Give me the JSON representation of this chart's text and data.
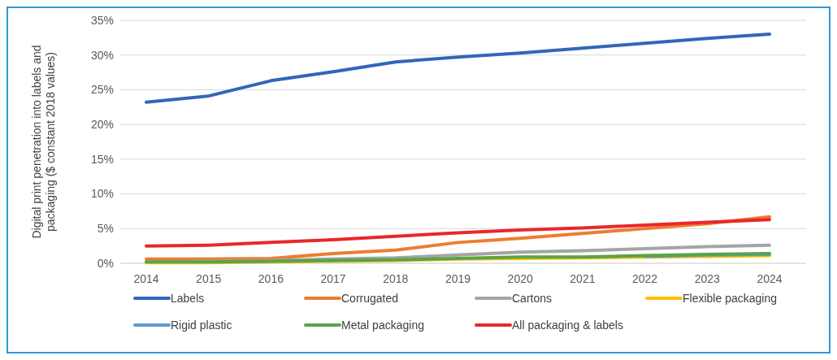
{
  "chart_data": {
    "type": "line",
    "ylabel": "Digital print penetration into labels and packaging ($ constant 2018 values)",
    "categories": [
      "2014",
      "2015",
      "2016",
      "2017",
      "2018",
      "2019",
      "2020",
      "2021",
      "2022",
      "2023",
      "2024"
    ],
    "series": [
      {
        "name": "Labels",
        "color": "#3266b8",
        "values": [
          23.2,
          24.1,
          26.3,
          27.6,
          29.0,
          29.7,
          30.3,
          31.0,
          31.7,
          32.4,
          33.0
        ]
      },
      {
        "name": "Corrugated",
        "color": "#ed7d31",
        "values": [
          0.6,
          0.6,
          0.7,
          1.4,
          1.9,
          3.0,
          3.6,
          4.3,
          5.0,
          5.7,
          6.7
        ]
      },
      {
        "name": "Cartons",
        "color": "#a5a5a5",
        "values": [
          0.2,
          0.3,
          0.4,
          0.6,
          0.8,
          1.2,
          1.6,
          1.8,
          2.1,
          2.4,
          2.6
        ]
      },
      {
        "name": "Flexible packaging",
        "color": "#ffc000",
        "values": [
          0.1,
          0.1,
          0.2,
          0.3,
          0.4,
          0.6,
          0.7,
          0.8,
          0.9,
          1.0,
          1.1
        ]
      },
      {
        "name": "Rigid plastic",
        "color": "#5b9bd5",
        "values": [
          null,
          null,
          null,
          null,
          null,
          null,
          null,
          null,
          1.0,
          1.2,
          1.3
        ]
      },
      {
        "name": "Metal packaging",
        "color": "#5aa34a",
        "values": [
          0.2,
          0.2,
          0.3,
          0.4,
          0.5,
          0.7,
          0.9,
          0.9,
          1.1,
          1.3,
          1.4
        ]
      },
      {
        "name": "All packaging & labels",
        "color": "#e8282a",
        "values": [
          2.5,
          2.6,
          3.0,
          3.4,
          3.9,
          4.4,
          4.8,
          5.1,
          5.5,
          5.9,
          6.3
        ]
      }
    ],
    "ylim": [
      0,
      35
    ],
    "yticks": [
      {
        "value": 0,
        "label": "0%"
      },
      {
        "value": 5,
        "label": "5%"
      },
      {
        "value": 10,
        "label": "10%"
      },
      {
        "value": 15,
        "label": "15%"
      },
      {
        "value": 20,
        "label": "20%"
      },
      {
        "value": 25,
        "label": "25%"
      },
      {
        "value": 30,
        "label": "30%"
      },
      {
        "value": 35,
        "label": "35%"
      }
    ],
    "grid": "y",
    "legend": "bottom",
    "marker": "none",
    "line_style": "solid"
  }
}
